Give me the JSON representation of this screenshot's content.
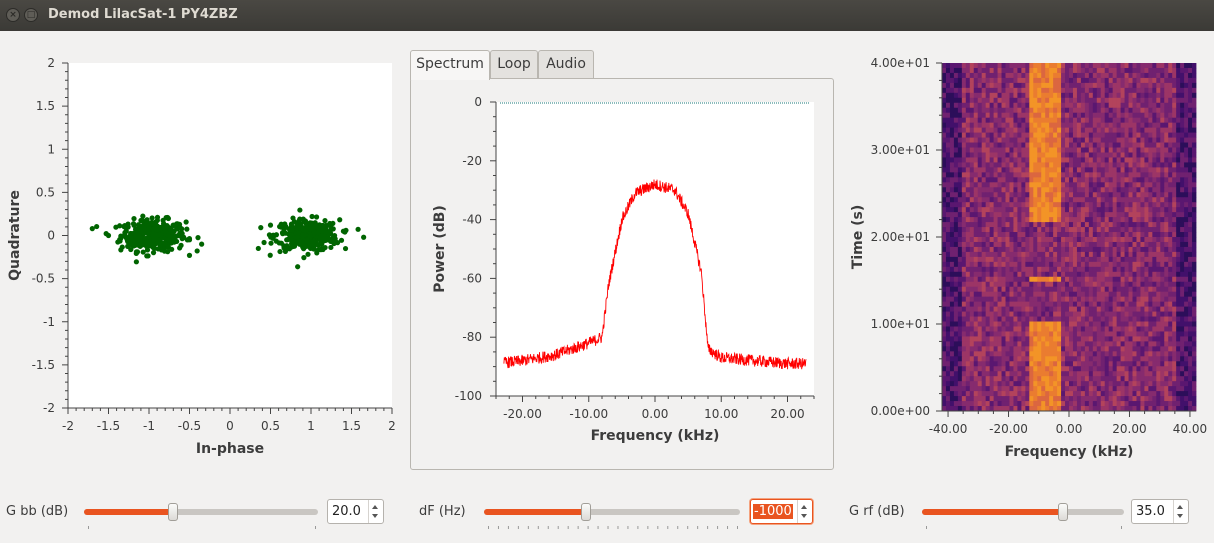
{
  "window": {
    "title": "Demod LilacSat-1  PY4ZBZ"
  },
  "constellation": {
    "xlabel": "In-phase",
    "ylabel": "Quadrature",
    "xticks": [
      "-2",
      "-1.5",
      "-1",
      "-0.5",
      "0",
      "0.5",
      "1",
      "1.5",
      "2"
    ],
    "yticks": [
      "2",
      "1.5",
      "1",
      "0.5",
      "0",
      "-0.5",
      "-1",
      "-1.5",
      "-2"
    ],
    "point_color": "#006400"
  },
  "tabs": [
    {
      "label": "Spectrum",
      "active": true
    },
    {
      "label": "Loop",
      "active": false
    },
    {
      "label": "Audio",
      "active": false
    }
  ],
  "spectrum": {
    "xlabel": "Frequency (kHz)",
    "ylabel": "Power (dB)",
    "xticks": [
      "-20.00",
      "-10.00",
      "0.00",
      "10.00",
      "20.00"
    ],
    "yticks": [
      "0",
      "-20",
      "-40",
      "-60",
      "-80",
      "-100"
    ],
    "trace_color": "#ff0000",
    "ref_color": "#1a7a7a"
  },
  "waterfall": {
    "xlabel": "Frequency (kHz)",
    "ylabel": "Time (s)",
    "xticks": [
      "-40.00",
      "-20.00",
      "0.00",
      "20.00",
      "40.00"
    ],
    "yticks": [
      "4.00e+01",
      "3.00e+01",
      "2.00e+01",
      "1.00e+01",
      "0.00e+00"
    ]
  },
  "controls": {
    "gbb": {
      "label": "G bb (dB)",
      "value": "20.0",
      "level": 0.38
    },
    "df": {
      "label": "dF (Hz)",
      "value": "-1000",
      "level": 0.4
    },
    "grf": {
      "label": "G rf (dB)",
      "value": "35.0",
      "level": 0.7
    }
  },
  "chart_data": [
    {
      "type": "scatter",
      "title": "",
      "xlabel": "In-phase",
      "ylabel": "Quadrature",
      "xlim": [
        -2,
        2
      ],
      "ylim": [
        -2,
        2
      ],
      "series": [
        {
          "x": [
            -1.7,
            -1.5,
            -1.3,
            -1.1,
            -0.9,
            -0.7,
            -0.5,
            -0.35
          ],
          "y": [
            0.08,
            0.0,
            0.1,
            -0.1,
            0.0,
            0.12,
            -0.05,
            -0.1
          ]
        },
        {
          "x": [
            0.35,
            0.5,
            0.7,
            0.9,
            1.1,
            1.3,
            1.4,
            1.65
          ],
          "y": [
            -0.15,
            0.12,
            -0.05,
            0.0,
            0.1,
            -0.08,
            0.05,
            -0.02
          ]
        }
      ]
    },
    {
      "type": "line",
      "title": "",
      "xlabel": "Frequency (kHz)",
      "ylabel": "Power (dB)",
      "xlim": [
        -24,
        24
      ],
      "ylim": [
        -100,
        0
      ],
      "x": [
        -24,
        -20,
        -15,
        -10,
        -8,
        -7,
        -5,
        -3,
        0,
        3,
        5,
        7,
        8,
        10,
        15,
        20,
        24
      ],
      "values": [
        -89,
        -88,
        -86,
        -82,
        -80,
        -62,
        -40,
        -31,
        -28,
        -30,
        -38,
        -58,
        -84,
        -87,
        -88,
        -89,
        -89
      ]
    },
    {
      "type": "heatmap",
      "title": "",
      "xlabel": "Frequency (kHz)",
      "ylabel": "Time (s)",
      "xlim": [
        -42,
        42
      ],
      "ylim": [
        0,
        40
      ],
      "signal_band_khz": [
        -13,
        -2
      ],
      "signal_segments_s": [
        [
          0,
          10.5
        ],
        [
          15,
          15.5
        ],
        [
          21.5,
          40
        ]
      ]
    }
  ]
}
